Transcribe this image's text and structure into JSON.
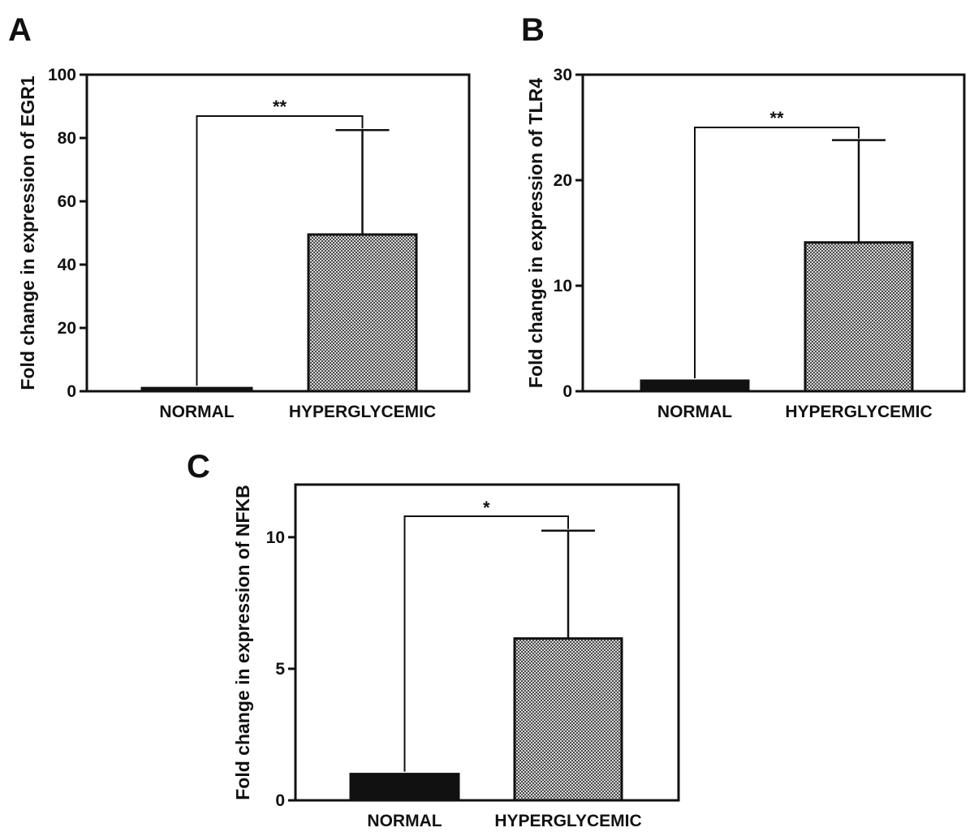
{
  "chart_data": [
    {
      "panel": "A",
      "type": "bar",
      "categories": [
        "NORMAL",
        "HYPERGLYCEMIC"
      ],
      "values": [
        1,
        49.5
      ],
      "error_upper": [
        null,
        82.5
      ],
      "ylabel": "Fold change in expression of EGR1",
      "ylim": [
        0,
        100
      ],
      "yticks": [
        "0",
        "20",
        "40",
        "60",
        "80",
        "100"
      ],
      "significance": "**",
      "bar_fills": [
        "solid-black",
        "checkered-gray"
      ]
    },
    {
      "panel": "B",
      "type": "bar",
      "categories": [
        "NORMAL",
        "HYPERGLYCEMIC"
      ],
      "values": [
        1,
        14.1
      ],
      "error_upper": [
        null,
        23.8
      ],
      "ylabel": "Fold change in expression of TLR4",
      "ylim": [
        0,
        30
      ],
      "yticks": [
        "0",
        "10",
        "20",
        "30"
      ],
      "significance": "**",
      "bar_fills": [
        "solid-black",
        "checkered-gray"
      ]
    },
    {
      "panel": "C",
      "type": "bar",
      "categories": [
        "NORMAL",
        "HYPERGLYCEMIC"
      ],
      "values": [
        1,
        6.15
      ],
      "error_upper": [
        null,
        10.25
      ],
      "ylabel": "Fold change in expression of NFKB",
      "ylim": [
        0,
        12
      ],
      "yticks": [
        "0",
        "5",
        "10"
      ],
      "significance": "*",
      "bar_fills": [
        "solid-black",
        "checkered-gray"
      ]
    }
  ],
  "colors": {
    "ink": "#111111",
    "check_light": "#d9d9d9",
    "check_dark": "#4a4a4a"
  }
}
